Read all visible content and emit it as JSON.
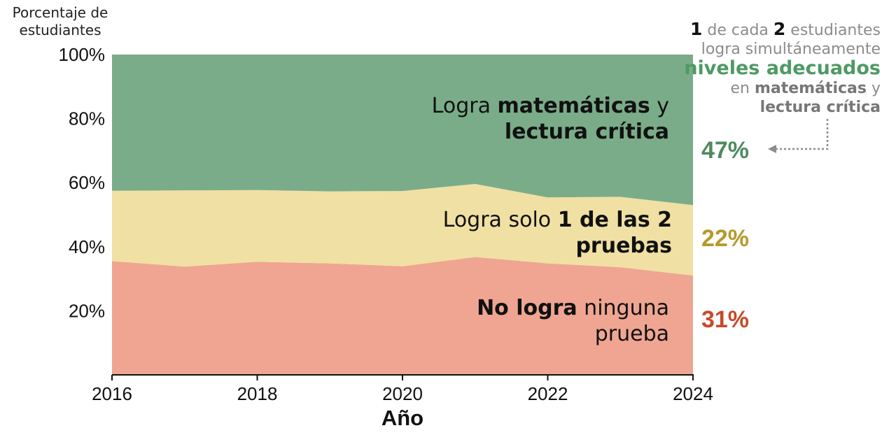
{
  "y_axis_title": "Porcentaje de estudiantes",
  "x_axis_title": "Año",
  "colors": {
    "both": "#7aac89",
    "one": "#f0e0a3",
    "none": "#efa591",
    "pct_both": "#4e8a5e",
    "pct_one": "#b59a2a",
    "pct_none": "#c64a2a"
  },
  "labels": {
    "both": {
      "pre": "Logra ",
      "bold1": "matemáticas",
      "mid": " y",
      "bold2": "lectura crítica"
    },
    "one": {
      "pre": "Logra solo ",
      "bold1": "1 de las 2",
      "bold2": "pruebas"
    },
    "none": {
      "bold1": "No logra",
      "post": " ninguna",
      "line2": "prueba"
    }
  },
  "end_values": {
    "both": "47%",
    "one": "22%",
    "none": "31%"
  },
  "annotation": {
    "n1": "1",
    "t1": " de cada ",
    "n2": "2",
    "t2": " estudiantes",
    "t3": "logra simultáneamente",
    "highlight": "niveles adecuados",
    "t4": "en ",
    "bold_math": "matemáticas",
    "t5": " y",
    "bold_read": "lectura crítica"
  },
  "chart_data": {
    "type": "area",
    "stacked": true,
    "x": [
      2016,
      2017,
      2018,
      2019,
      2020,
      2021,
      2022,
      2023,
      2024
    ],
    "series": [
      {
        "name": "No logra ninguna prueba",
        "values": [
          35.5,
          33.8,
          35.3,
          34.8,
          33.9,
          36.8,
          34.8,
          33.6,
          31.0
        ]
      },
      {
        "name": "Logra solo 1 de las 2 pruebas",
        "values": [
          22.0,
          23.8,
          22.4,
          22.5,
          23.5,
          22.8,
          20.6,
          22.0,
          22.0
        ]
      },
      {
        "name": "Logra matemáticas y lectura crítica",
        "values": [
          42.5,
          42.4,
          42.3,
          42.7,
          42.6,
          40.4,
          44.6,
          44.4,
          47.0
        ]
      }
    ],
    "xticks": [
      "2016",
      "2018",
      "2020",
      "2022",
      "2024"
    ],
    "yticks": [
      "20%",
      "40%",
      "60%",
      "80%",
      "100%"
    ],
    "ytick_values": [
      20,
      40,
      60,
      80,
      100
    ],
    "xtick_values": [
      2016,
      2018,
      2020,
      2022,
      2024
    ],
    "ylim": [
      0,
      100
    ],
    "xlim": [
      2016,
      2024
    ],
    "xlabel": "Año",
    "ylabel": "Porcentaje de estudiantes"
  }
}
